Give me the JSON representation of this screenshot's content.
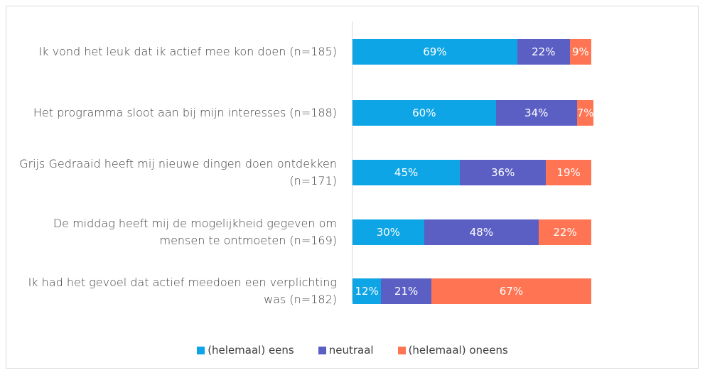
{
  "chart_data": {
    "type": "stacked-bar-horizontal",
    "categories": [
      "Ik vond het leuk dat ik actief mee kon doen (n=185)",
      "Het programma sloot aan bij mijn interesses (n=188)",
      "Grijs Gedraaid heeft mij nieuwe dingen doen ontdekken (n=171)",
      "De middag heeft mij de mogelijkheid gegeven om mensen te ontmoeten (n=169)",
      "Ik had het gevoel dat actief meedoen een verplichting was (n=182)"
    ],
    "series": [
      {
        "name": "(helemaal) eens",
        "color": "#0ea5e6",
        "values": [
          69,
          60,
          45,
          30,
          12
        ],
        "value_labels": [
          "69%",
          "60%",
          "45%",
          "30%",
          "12%"
        ]
      },
      {
        "name": "neutraal",
        "color": "#5b5fc4",
        "values": [
          22,
          34,
          36,
          48,
          21
        ],
        "value_labels": [
          "22%",
          "34%",
          "36%",
          "48%",
          "21%"
        ]
      },
      {
        "name": "(helemaal) oneens",
        "color": "#ff7553",
        "values": [
          9,
          7,
          19,
          22,
          67
        ],
        "value_labels": [
          "9%",
          "7%",
          "19%",
          "22%",
          "67%"
        ]
      }
    ],
    "legend": "bottom"
  }
}
